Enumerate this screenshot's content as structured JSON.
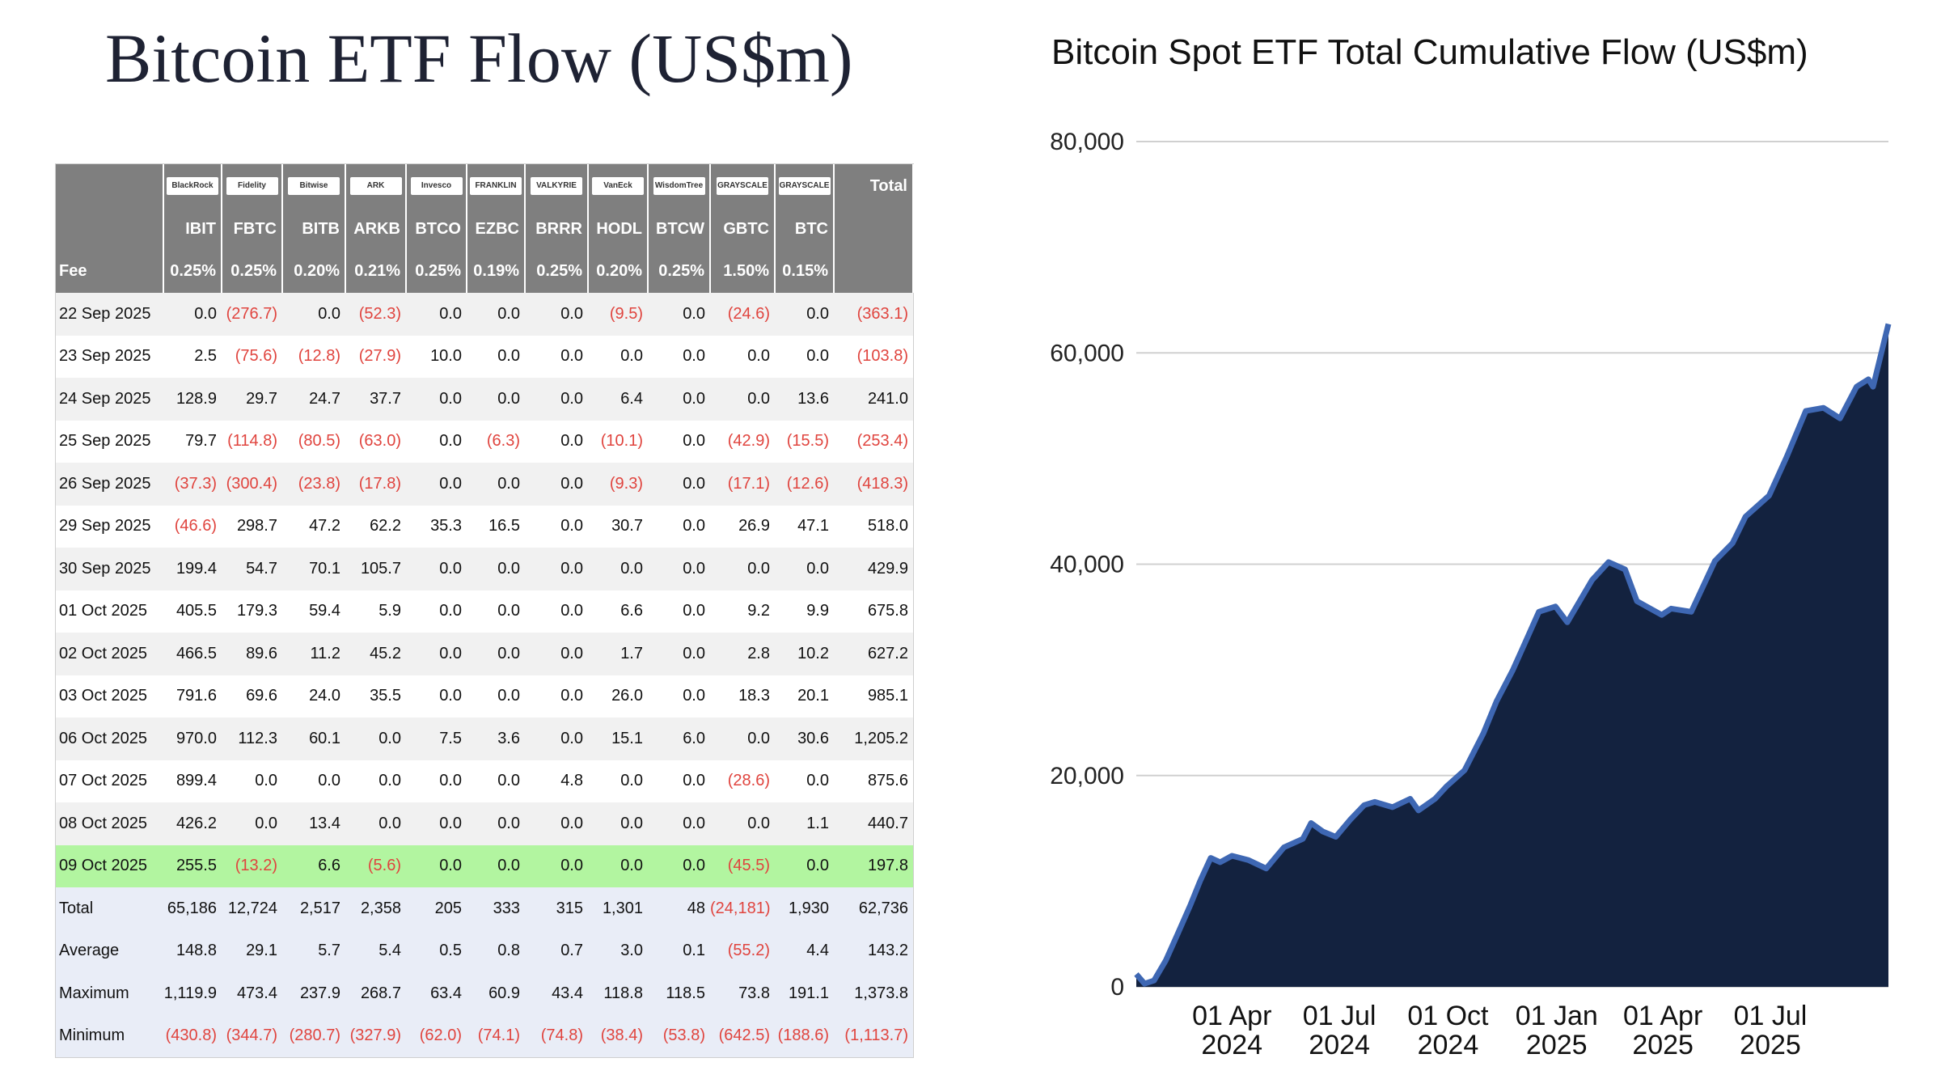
{
  "left_title": "Bitcoin ETF Flow (US$m)",
  "right_title": "Bitcoin Spot ETF Total Cumulative Flow (US$m)",
  "colors": {
    "header_bg": "#7f7f7f",
    "negative": "#e0443e",
    "highlight": "#b2f5a0",
    "area_fill": "#13223f",
    "area_line": "#3e67b3",
    "stat_bg": "#e9edf7"
  },
  "table": {
    "logo_icons": [
      "blackrock-logo-icon",
      "fidelity-logo-icon",
      "bitwise-logo-icon",
      "ark-invest-logo-icon",
      "invesco-logo-icon",
      "franklin-templeton-logo-icon",
      "valkyrie-logo-icon",
      "vaneck-logo-icon",
      "wisdomtree-logo-icon",
      "grayscale-logo-icon",
      "grayscale-mini-logo-icon"
    ],
    "logo_labels": [
      "BlackRock",
      "Fidelity",
      "Bitwise",
      "ARK",
      "Invesco",
      "FRANKLIN",
      "VALKYRIE",
      "VanEck",
      "WisdomTree",
      "GRAYSCALE",
      "GRAYSCALE"
    ],
    "total_header": "Total",
    "tickers": [
      "IBIT",
      "FBTC",
      "BITB",
      "ARKB",
      "BTCO",
      "EZBC",
      "BRRR",
      "HODL",
      "BTCW",
      "GBTC",
      "BTC"
    ],
    "fee_label": "Fee",
    "fees": [
      "0.25%",
      "0.25%",
      "0.20%",
      "0.21%",
      "0.25%",
      "0.19%",
      "0.25%",
      "0.20%",
      "0.25%",
      "1.50%",
      "0.15%"
    ],
    "rows": [
      {
        "date": "22 Sep 2025",
        "values": [
          "0.0",
          "(276.7)",
          "0.0",
          "(52.3)",
          "0.0",
          "0.0",
          "0.0",
          "(9.5)",
          "0.0",
          "(24.6)",
          "0.0"
        ],
        "total": "(363.1)"
      },
      {
        "date": "23 Sep 2025",
        "values": [
          "2.5",
          "(75.6)",
          "(12.8)",
          "(27.9)",
          "10.0",
          "0.0",
          "0.0",
          "0.0",
          "0.0",
          "0.0",
          "0.0"
        ],
        "total": "(103.8)"
      },
      {
        "date": "24 Sep 2025",
        "values": [
          "128.9",
          "29.7",
          "24.7",
          "37.7",
          "0.0",
          "0.0",
          "0.0",
          "6.4",
          "0.0",
          "0.0",
          "13.6"
        ],
        "total": "241.0"
      },
      {
        "date": "25 Sep 2025",
        "values": [
          "79.7",
          "(114.8)",
          "(80.5)",
          "(63.0)",
          "0.0",
          "(6.3)",
          "0.0",
          "(10.1)",
          "0.0",
          "(42.9)",
          "(15.5)"
        ],
        "total": "(253.4)"
      },
      {
        "date": "26 Sep 2025",
        "values": [
          "(37.3)",
          "(300.4)",
          "(23.8)",
          "(17.8)",
          "0.0",
          "0.0",
          "0.0",
          "(9.3)",
          "0.0",
          "(17.1)",
          "(12.6)"
        ],
        "total": "(418.3)"
      },
      {
        "date": "29 Sep 2025",
        "values": [
          "(46.6)",
          "298.7",
          "47.2",
          "62.2",
          "35.3",
          "16.5",
          "0.0",
          "30.7",
          "0.0",
          "26.9",
          "47.1"
        ],
        "total": "518.0"
      },
      {
        "date": "30 Sep 2025",
        "values": [
          "199.4",
          "54.7",
          "70.1",
          "105.7",
          "0.0",
          "0.0",
          "0.0",
          "0.0",
          "0.0",
          "0.0",
          "0.0"
        ],
        "total": "429.9"
      },
      {
        "date": "01 Oct 2025",
        "values": [
          "405.5",
          "179.3",
          "59.4",
          "5.9",
          "0.0",
          "0.0",
          "0.0",
          "6.6",
          "0.0",
          "9.2",
          "9.9"
        ],
        "total": "675.8"
      },
      {
        "date": "02 Oct 2025",
        "values": [
          "466.5",
          "89.6",
          "11.2",
          "45.2",
          "0.0",
          "0.0",
          "0.0",
          "1.7",
          "0.0",
          "2.8",
          "10.2"
        ],
        "total": "627.2"
      },
      {
        "date": "03 Oct 2025",
        "values": [
          "791.6",
          "69.6",
          "24.0",
          "35.5",
          "0.0",
          "0.0",
          "0.0",
          "26.0",
          "0.0",
          "18.3",
          "20.1"
        ],
        "total": "985.1"
      },
      {
        "date": "06 Oct 2025",
        "values": [
          "970.0",
          "112.3",
          "60.1",
          "0.0",
          "7.5",
          "3.6",
          "0.0",
          "15.1",
          "6.0",
          "0.0",
          "30.6"
        ],
        "total": "1,205.2"
      },
      {
        "date": "07 Oct 2025",
        "values": [
          "899.4",
          "0.0",
          "0.0",
          "0.0",
          "0.0",
          "0.0",
          "4.8",
          "0.0",
          "0.0",
          "(28.6)",
          "0.0"
        ],
        "total": "875.6"
      },
      {
        "date": "08 Oct 2025",
        "values": [
          "426.2",
          "0.0",
          "13.4",
          "0.0",
          "0.0",
          "0.0",
          "0.0",
          "0.0",
          "0.0",
          "0.0",
          "1.1"
        ],
        "total": "440.7"
      },
      {
        "date": "09 Oct 2025",
        "values": [
          "255.5",
          "(13.2)",
          "6.6",
          "(5.6)",
          "0.0",
          "0.0",
          "0.0",
          "0.0",
          "0.0",
          "(45.5)",
          "0.0"
        ],
        "total": "197.8",
        "highlight": true
      }
    ],
    "stats": [
      {
        "label": "Total",
        "values": [
          "65,186",
          "12,724",
          "2,517",
          "2,358",
          "205",
          "333",
          "315",
          "1,301",
          "48",
          "(24,181)",
          "1,930"
        ],
        "total": "62,736"
      },
      {
        "label": "Average",
        "values": [
          "148.8",
          "29.1",
          "5.7",
          "5.4",
          "0.5",
          "0.8",
          "0.7",
          "3.0",
          "0.1",
          "(55.2)",
          "4.4"
        ],
        "total": "143.2"
      },
      {
        "label": "Maximum",
        "values": [
          "1,119.9",
          "473.4",
          "237.9",
          "268.7",
          "63.4",
          "60.9",
          "43.4",
          "118.8",
          "118.5",
          "73.8",
          "191.1"
        ],
        "total": "1,373.8"
      },
      {
        "label": "Minimum",
        "values": [
          "(430.8)",
          "(344.7)",
          "(280.7)",
          "(327.9)",
          "(62.0)",
          "(74.1)",
          "(74.8)",
          "(38.4)",
          "(53.8)",
          "(642.5)",
          "(188.6)"
        ],
        "total": "(1,113.7)"
      }
    ]
  },
  "chart_data": {
    "type": "area",
    "title": "Bitcoin Spot ETF Total Cumulative Flow (US$m)",
    "xlabel": "",
    "ylabel": "",
    "ylim": [
      0,
      80000
    ],
    "xlim": [
      "2024-01-11",
      "2025-10-09"
    ],
    "grid": "horizontal",
    "y_ticks": [
      0,
      20000,
      40000,
      60000,
      80000
    ],
    "y_tick_labels": [
      "0",
      "20,000",
      "40,000",
      "60,000",
      "80,000"
    ],
    "x_ticks": [
      {
        "date": "2024-04-01",
        "line1": "01 Apr",
        "line2": "2024"
      },
      {
        "date": "2024-07-01",
        "line1": "01 Jul",
        "line2": "2024"
      },
      {
        "date": "2024-10-01",
        "line1": "01 Oct",
        "line2": "2024"
      },
      {
        "date": "2025-01-01",
        "line1": "01 Jan",
        "line2": "2025"
      },
      {
        "date": "2025-04-01",
        "line1": "01 Apr",
        "line2": "2025"
      },
      {
        "date": "2025-07-01",
        "line1": "01 Jul",
        "line2": "2025"
      }
    ],
    "series": [
      {
        "x": [
          "2024-01-11",
          "2024-01-18",
          "2024-01-26",
          "2024-02-05",
          "2024-02-15",
          "2024-02-26",
          "2024-03-05",
          "2024-03-14",
          "2024-03-22",
          "2024-04-01",
          "2024-04-15",
          "2024-04-30",
          "2024-05-15",
          "2024-05-31",
          "2024-06-07",
          "2024-06-17",
          "2024-06-28",
          "2024-07-10",
          "2024-07-22",
          "2024-07-31",
          "2024-08-15",
          "2024-08-30",
          "2024-09-06",
          "2024-09-20",
          "2024-09-30",
          "2024-10-15",
          "2024-10-31",
          "2024-11-11",
          "2024-11-25",
          "2024-12-05",
          "2024-12-17",
          "2024-12-31",
          "2025-01-10",
          "2025-01-31",
          "2025-02-14",
          "2025-02-28",
          "2025-03-10",
          "2025-03-31",
          "2025-04-08",
          "2025-04-25",
          "2025-05-15",
          "2025-05-30",
          "2025-06-10",
          "2025-06-30",
          "2025-07-15",
          "2025-07-31",
          "2025-08-15",
          "2025-08-29",
          "2025-09-12",
          "2025-09-22",
          "2025-09-26",
          "2025-10-09"
        ],
        "y": [
          1200,
          300,
          600,
          2500,
          5000,
          7800,
          10000,
          12200,
          11800,
          12400,
          12000,
          11200,
          13200,
          14000,
          15500,
          14700,
          14200,
          15800,
          17200,
          17500,
          17000,
          17800,
          16700,
          17800,
          19000,
          20500,
          24000,
          27000,
          30000,
          32500,
          35500,
          36000,
          34500,
          38500,
          40200,
          39500,
          36500,
          35200,
          35800,
          35500,
          40300,
          42000,
          44500,
          46500,
          50200,
          54500,
          54800,
          53800,
          56800,
          57500,
          56800,
          62736
        ]
      }
    ]
  }
}
